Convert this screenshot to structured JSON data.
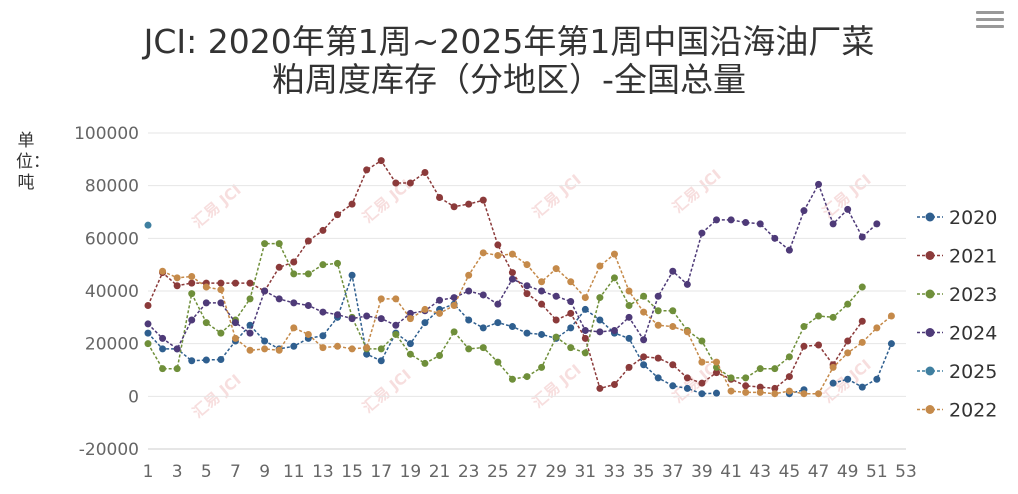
{
  "title_line1": "JCI: 2020年第1周~2025年第1周中国沿海油厂菜",
  "title_line2": "粕周度库存（分地区）-全国总量",
  "ylabel": "单位：吨",
  "watermark": "汇易 JCI",
  "chart_data": {
    "type": "line",
    "title": "JCI: 2020年第1周~2025年第1周中国沿海油厂菜粕周度库存（分地区）-全国总量",
    "ylabel": "单位：吨",
    "xlabel": "",
    "ylim": [
      -20000,
      100000
    ],
    "yticks": [
      -20000,
      0,
      20000,
      40000,
      60000,
      80000,
      100000
    ],
    "ytick_labels": [
      "-20000",
      "0",
      "20000",
      "40000",
      "60000",
      "80000",
      "100000"
    ],
    "xlim": [
      1,
      53
    ],
    "xticks": [
      1,
      3,
      5,
      7,
      9,
      11,
      13,
      15,
      17,
      19,
      21,
      23,
      25,
      27,
      29,
      31,
      33,
      35,
      37,
      39,
      41,
      43,
      45,
      47,
      49,
      51,
      53
    ],
    "xtick_labels": [
      "1",
      "3",
      "5",
      "7",
      "9",
      "11",
      "13",
      "15",
      "17",
      "19",
      "21",
      "23",
      "25",
      "27",
      "29",
      "31",
      "33",
      "35",
      "37",
      "39",
      "41",
      "43",
      "45",
      "47",
      "49",
      "51",
      "53"
    ],
    "grid": "horizontal",
    "legend_position": "right",
    "series": [
      {
        "name": "2020",
        "color": "#2f5f8f",
        "values": [
          24000,
          18000,
          18000,
          13500,
          13800,
          14000,
          21000,
          27000,
          21000,
          18000,
          19000,
          22000,
          23000,
          30000,
          46000,
          16000,
          13500,
          24000,
          20000,
          28000,
          33000,
          35000,
          29000,
          26000,
          28000,
          26500,
          24000,
          23500,
          22000,
          26000,
          33000,
          29000,
          24000,
          22000,
          12000,
          7000,
          4000,
          3000,
          1000,
          1200,
          null,
          null,
          null,
          null,
          1000,
          2500,
          null,
          5000,
          6500,
          3500,
          6500,
          20000
        ]
      },
      {
        "name": "2021",
        "color": "#8b3a3a",
        "values": [
          34500,
          47000,
          42000,
          43000,
          43000,
          43000,
          43000,
          43000,
          40000,
          49000,
          51000,
          59000,
          63000,
          69000,
          73000,
          86000,
          89500,
          81000,
          81000,
          85000,
          75500,
          72000,
          73000,
          74500,
          57500,
          47000,
          39000,
          35000,
          29000,
          31500,
          22000,
          3000,
          4500,
          11000,
          15000,
          14500,
          12000,
          7000,
          5000,
          9000,
          6500,
          4000,
          3500,
          3000,
          7500,
          19000,
          19500,
          12000,
          21000,
          28500,
          null,
          null
        ]
      },
      {
        "name": "2023",
        "color": "#6f8f3a",
        "values": [
          20000,
          10500,
          10500,
          39000,
          28000,
          24000,
          29000,
          37000,
          58000,
          58000,
          46500,
          46500,
          50000,
          50500,
          30000,
          18000,
          18000,
          23500,
          16000,
          12500,
          15500,
          24500,
          18000,
          18500,
          13000,
          6500,
          7500,
          11000,
          22500,
          18500,
          16500,
          37500,
          45000,
          34500,
          38000,
          32500,
          32500,
          25000,
          21000,
          11000,
          7000,
          7000,
          10500,
          10500,
          15000,
          26500,
          30500,
          30000,
          35000,
          41500,
          null,
          null
        ]
      },
      {
        "name": "2024",
        "color": "#4e3a78",
        "values": [
          27500,
          22000,
          18000,
          29000,
          35500,
          35500,
          28000,
          24000,
          40000,
          37000,
          35500,
          34500,
          32000,
          31000,
          29500,
          30500,
          29500,
          27000,
          31500,
          32500,
          36500,
          37500,
          40000,
          38500,
          35000,
          44500,
          42000,
          40000,
          38000,
          36000,
          25000,
          24500,
          25000,
          30000,
          21500,
          38000,
          47500,
          42500,
          62000,
          67000,
          67000,
          66000,
          65500,
          60000,
          55500,
          70500,
          80500,
          65500,
          71000,
          60500,
          65500,
          null
        ]
      },
      {
        "name": "2025",
        "color": "#3f7fa0",
        "values": [
          65000,
          null,
          null,
          null,
          null,
          null,
          null,
          null,
          null,
          null,
          null,
          null,
          null,
          null,
          null,
          null,
          null,
          null,
          null,
          null,
          null,
          null,
          null,
          null,
          null,
          null,
          null,
          null,
          null,
          null,
          null,
          null,
          null,
          null,
          null,
          null,
          null,
          null,
          null,
          null,
          null,
          null,
          null,
          null,
          null,
          null,
          null,
          null,
          null,
          null,
          null,
          null
        ]
      },
      {
        "name": "2022",
        "color": "#c58a4a",
        "values": [
          null,
          47500,
          45000,
          45500,
          41500,
          40500,
          22000,
          17500,
          18000,
          17500,
          26000,
          23500,
          18500,
          19000,
          18000,
          18500,
          37000,
          37000,
          29500,
          33000,
          31500,
          34500,
          46000,
          54500,
          53500,
          54000,
          50000,
          43500,
          48500,
          43500,
          37500,
          49500,
          54000,
          40000,
          32000,
          27000,
          26500,
          24500,
          13000,
          13000,
          2000,
          1500,
          1500,
          1000,
          2000,
          1000,
          1000,
          11000,
          16500,
          20500,
          26000,
          30500
        ]
      }
    ]
  }
}
